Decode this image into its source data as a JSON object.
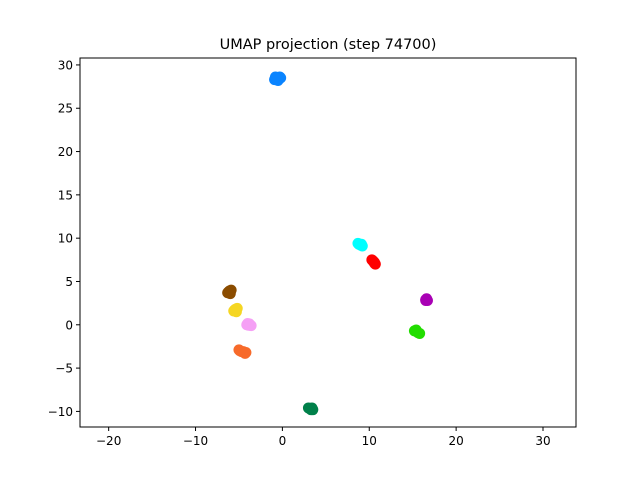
{
  "chart_data": {
    "type": "scatter",
    "title": "UMAP projection (step 74700)",
    "xlabel": "",
    "ylabel": "",
    "xlim": [
      -23.3,
      33.8
    ],
    "ylim": [
      -11.8,
      30.8
    ],
    "xticks": [
      -20,
      -10,
      0,
      10,
      20,
      30
    ],
    "yticks": [
      -10,
      -5,
      0,
      5,
      10,
      15,
      20,
      25,
      30
    ],
    "grid": false,
    "legend": "none",
    "clusters": [
      {
        "color": "#1f77b4",
        "dotColor": "#0a84ff",
        "points": [
          [
            -0.9,
            28.3
          ],
          [
            -0.6,
            28.5
          ],
          [
            -0.3,
            28.6
          ],
          [
            -0.7,
            28.4
          ],
          [
            -0.5,
            28.2
          ],
          [
            -0.2,
            28.5
          ],
          [
            -0.8,
            28.6
          ]
        ]
      },
      {
        "dotColor": "#00ffff",
        "points": [
          [
            8.7,
            9.4
          ],
          [
            9.0,
            9.2
          ],
          [
            9.2,
            9.1
          ],
          [
            8.8,
            9.3
          ],
          [
            9.1,
            9.3
          ]
        ]
      },
      {
        "dotColor": "#ff0000",
        "points": [
          [
            10.4,
            7.4
          ],
          [
            10.6,
            7.1
          ],
          [
            10.7,
            7.0
          ],
          [
            10.5,
            7.3
          ],
          [
            10.3,
            7.5
          ],
          [
            10.6,
            7.2
          ]
        ]
      },
      {
        "dotColor": "#a800b4",
        "points": [
          [
            16.5,
            2.9
          ],
          [
            16.7,
            2.8
          ],
          [
            16.6,
            3.0
          ],
          [
            16.5,
            2.8
          ]
        ]
      },
      {
        "dotColor": "#22dd00",
        "points": [
          [
            15.2,
            -0.7
          ],
          [
            15.5,
            -0.8
          ],
          [
            15.8,
            -1.0
          ],
          [
            15.4,
            -0.6
          ],
          [
            15.6,
            -0.9
          ]
        ]
      },
      {
        "dotColor": "#8b4c00",
        "points": [
          [
            -6.3,
            3.7
          ],
          [
            -6.1,
            3.9
          ],
          [
            -5.9,
            4.0
          ],
          [
            -6.2,
            3.8
          ],
          [
            -6.0,
            3.6
          ]
        ]
      },
      {
        "dotColor": "#f5d623",
        "points": [
          [
            -5.6,
            1.6
          ],
          [
            -5.4,
            1.8
          ],
          [
            -5.3,
            1.5
          ],
          [
            -5.5,
            1.7
          ],
          [
            -5.2,
            1.9
          ]
        ]
      },
      {
        "dotColor": "#f5a0f5",
        "points": [
          [
            -4.1,
            0.0
          ],
          [
            -3.8,
            0.1
          ],
          [
            -3.6,
            -0.1
          ],
          [
            -3.9,
            -0.05
          ],
          [
            -4.0,
            0.15
          ]
        ]
      },
      {
        "dotColor": "#f76a2a",
        "points": [
          [
            -5.0,
            -2.9
          ],
          [
            -4.7,
            -3.1
          ],
          [
            -4.3,
            -3.3
          ],
          [
            -4.5,
            -3.1
          ],
          [
            -4.2,
            -3.2
          ],
          [
            -4.9,
            -3.0
          ]
        ]
      },
      {
        "dotColor": "#00804a",
        "points": [
          [
            3.0,
            -9.6
          ],
          [
            3.3,
            -9.8
          ],
          [
            3.5,
            -9.8
          ],
          [
            3.2,
            -9.7
          ],
          [
            3.4,
            -9.6
          ]
        ]
      }
    ]
  }
}
